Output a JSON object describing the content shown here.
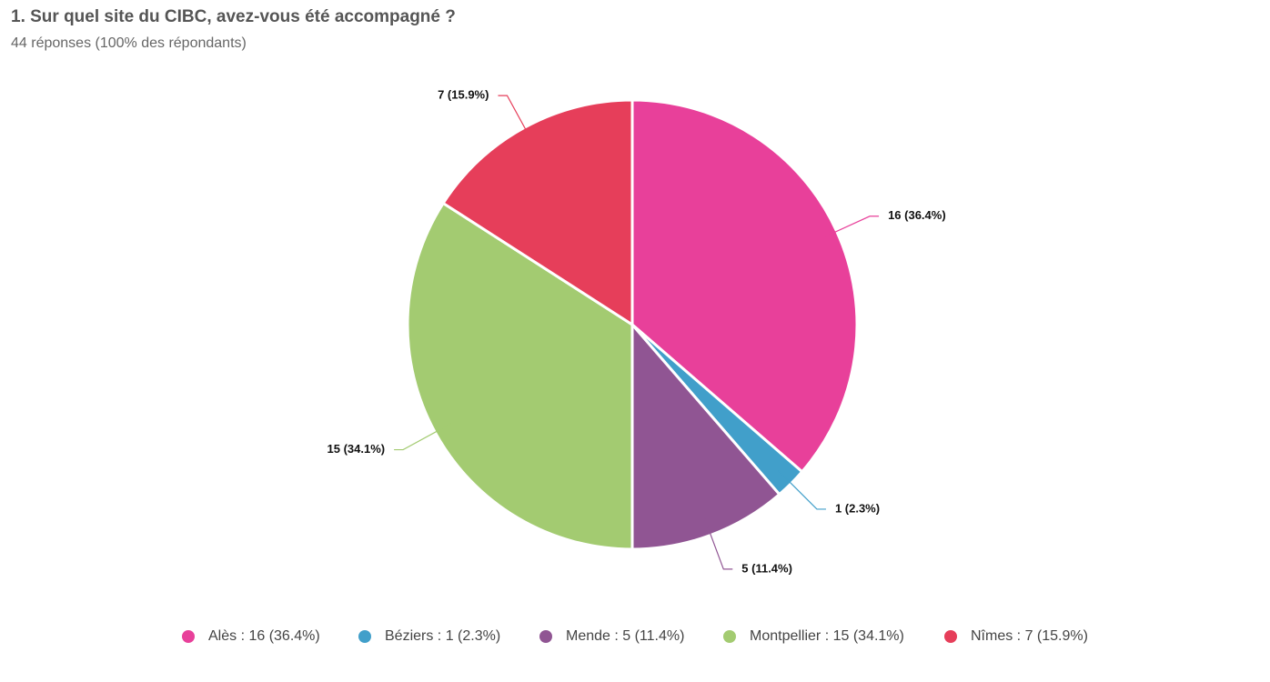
{
  "chart_data": {
    "type": "pie",
    "title": "1. Sur quel site du CIBC, avez-vous été accompagné ?",
    "subtitle": "44 réponses (100% des répondants)",
    "categories": [
      "Alès",
      "Béziers",
      "Mende",
      "Montpellier",
      "Nîmes"
    ],
    "values": [
      16,
      1,
      5,
      15,
      7
    ],
    "value_labels": [
      "16 (36.4%)",
      "1 (2.3%)",
      "5 (11.4%)",
      "15 (34.1%)",
      "7 (15.9%)"
    ],
    "legend_labels": [
      "Alès : 16 (36.4%)",
      "Béziers : 1 (2.3%)",
      "Mende : 5 (11.4%)",
      "Montpellier : 15 (34.1%)",
      "Nîmes : 7 (15.9%)"
    ],
    "colors": [
      "#e8409a",
      "#419fca",
      "#905593",
      "#a3cb71",
      "#e63e5a"
    ],
    "legend": "bottom"
  }
}
